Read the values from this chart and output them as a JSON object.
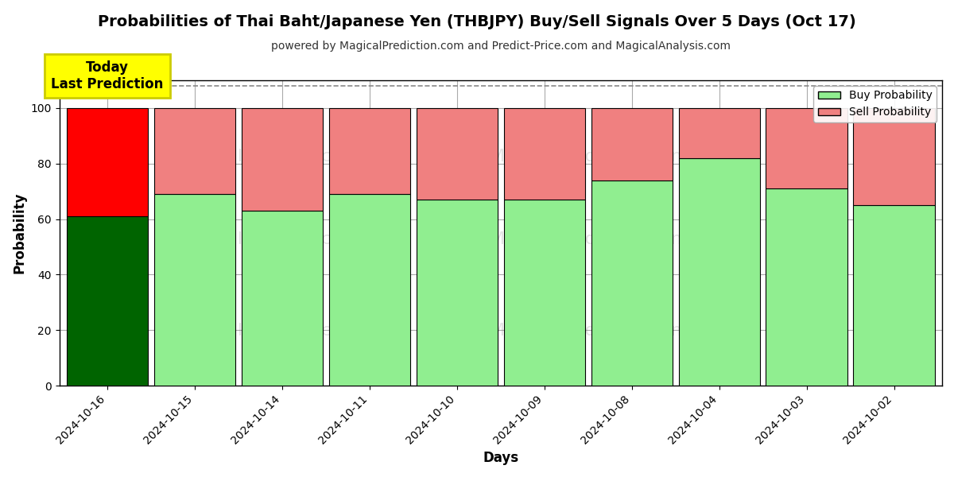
{
  "title": "Probabilities of Thai Baht/Japanese Yen (THBJPY) Buy/Sell Signals Over 5 Days (Oct 17)",
  "subtitle": "powered by MagicalPrediction.com and Predict-Price.com and MagicalAnalysis.com",
  "xlabel": "Days",
  "ylabel": "Probability",
  "dates": [
    "2024-10-16",
    "2024-10-15",
    "2024-10-14",
    "2024-10-11",
    "2024-10-10",
    "2024-10-09",
    "2024-10-08",
    "2024-10-04",
    "2024-10-03",
    "2024-10-02"
  ],
  "buy_probs": [
    61,
    69,
    63,
    69,
    67,
    67,
    74,
    82,
    71,
    65
  ],
  "sell_probs": [
    39,
    31,
    37,
    31,
    33,
    33,
    26,
    18,
    29,
    35
  ],
  "buy_color_today": "#006400",
  "sell_color_today": "#FF0000",
  "buy_color_other": "#90EE90",
  "sell_color_other": "#F08080",
  "bar_edge_color": "#000000",
  "ylim": [
    0,
    110
  ],
  "dashed_line_y": 108,
  "today_box_color": "#FFFF00",
  "today_box_text": "Today\nLast Prediction",
  "legend_buy_label": "Buy Probability",
  "legend_sell_label": "Sell Probability",
  "grid_color": "#aaaaaa",
  "background_color": "#ffffff",
  "watermark_row1": [
    "calAnalysis.com",
    "MagicalPrediction.com"
  ],
  "watermark_row2": [
    "calAnalysis.com",
    "MagicalPrediction.com"
  ],
  "watermark_row3": [
    "calAnalysis.com",
    "MagicalPrediction.com"
  ]
}
